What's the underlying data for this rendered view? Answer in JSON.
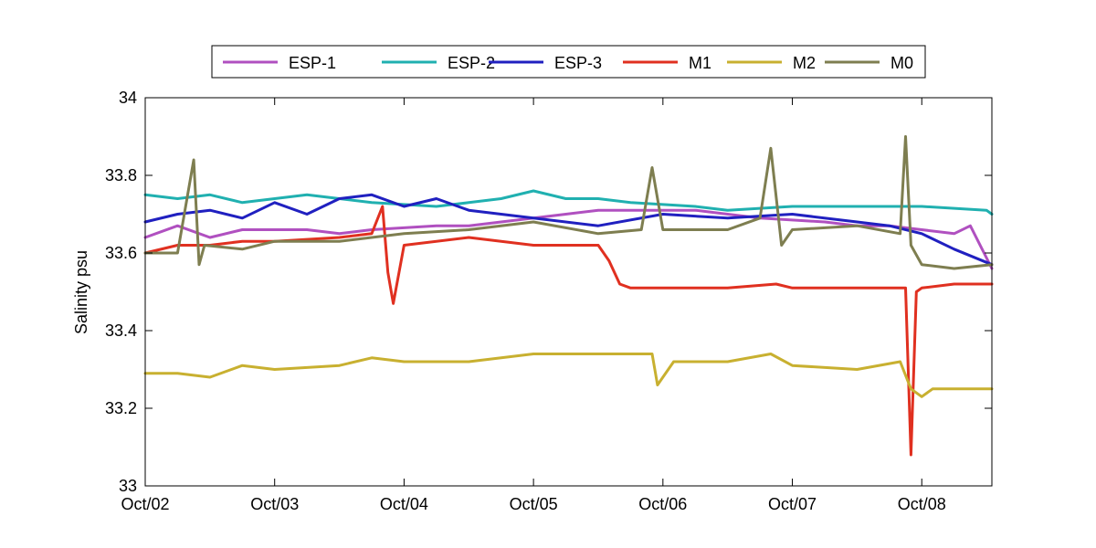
{
  "chart_data": {
    "type": "line",
    "title": "",
    "xlabel": "",
    "ylabel": "Salinity psu",
    "ylim": [
      33,
      34
    ],
    "xlim": [
      "2009-10-02",
      "2009-10-08 13:00"
    ],
    "yticks": [
      33,
      33.2,
      33.4,
      33.6,
      33.8,
      34
    ],
    "ytick_labels": [
      "33",
      "33.2",
      "33.4",
      "33.6",
      "33.8",
      "34"
    ],
    "xtick_values": [
      "2009-10-02",
      "2009-10-03",
      "2009-10-04",
      "2009-10-05",
      "2009-10-06",
      "2009-10-07",
      "2009-10-08"
    ],
    "xtick_labels": [
      "Oct/02",
      "Oct/03",
      "Oct/04",
      "Oct/05",
      "Oct/06",
      "Oct/07",
      "Oct/08"
    ],
    "grid": false,
    "legend": {
      "placement": "top-outside",
      "orientation": "horizontal"
    },
    "series": [
      {
        "name": "ESP-1",
        "color": "#b050c0",
        "x": [
          "2009-10-02 00:00",
          "2009-10-02 06:00",
          "2009-10-02 12:00",
          "2009-10-02 18:00",
          "2009-10-03 06:00",
          "2009-10-03 12:00",
          "2009-10-03 18:00",
          "2009-10-04 06:00",
          "2009-10-04 12:00",
          "2009-10-04 18:00",
          "2009-10-05 06:00",
          "2009-10-05 12:00",
          "2009-10-05 18:00",
          "2009-10-06 06:00",
          "2009-10-06 12:00",
          "2009-10-06 18:00",
          "2009-10-07 06:00",
          "2009-10-07 12:00",
          "2009-10-07 18:00",
          "2009-10-08 00:00",
          "2009-10-08 06:00",
          "2009-10-08 09:00",
          "2009-10-08 13:00"
        ],
        "y": [
          33.64,
          33.67,
          33.64,
          33.66,
          33.66,
          33.65,
          33.66,
          33.67,
          33.67,
          33.68,
          33.7,
          33.71,
          33.71,
          33.71,
          33.7,
          33.69,
          33.68,
          33.67,
          33.67,
          33.66,
          33.65,
          33.67,
          33.56
        ]
      },
      {
        "name": "ESP-2",
        "color": "#20b0b0",
        "x": [
          "2009-10-02 00:00",
          "2009-10-02 06:00",
          "2009-10-02 12:00",
          "2009-10-02 18:00",
          "2009-10-03 00:00",
          "2009-10-03 06:00",
          "2009-10-03 12:00",
          "2009-10-03 18:00",
          "2009-10-04 06:00",
          "2009-10-04 12:00",
          "2009-10-04 18:00",
          "2009-10-05 00:00",
          "2009-10-05 06:00",
          "2009-10-05 12:00",
          "2009-10-05 18:00",
          "2009-10-06 06:00",
          "2009-10-06 12:00",
          "2009-10-07 00:00",
          "2009-10-07 12:00",
          "2009-10-08 00:00",
          "2009-10-08 12:00",
          "2009-10-08 13:00"
        ],
        "y": [
          33.75,
          33.74,
          33.75,
          33.73,
          33.74,
          33.75,
          33.74,
          33.73,
          33.72,
          33.73,
          33.74,
          33.76,
          33.74,
          33.74,
          33.73,
          33.72,
          33.71,
          33.72,
          33.72,
          33.72,
          33.71,
          33.7
        ]
      },
      {
        "name": "ESP-3",
        "color": "#2020c0",
        "x": [
          "2009-10-02 00:00",
          "2009-10-02 06:00",
          "2009-10-02 12:00",
          "2009-10-02 18:00",
          "2009-10-03 00:00",
          "2009-10-03 06:00",
          "2009-10-03 12:00",
          "2009-10-03 18:00",
          "2009-10-04 00:00",
          "2009-10-04 06:00",
          "2009-10-04 12:00",
          "2009-10-04 18:00",
          "2009-10-05 00:00",
          "2009-10-05 12:00",
          "2009-10-06 00:00",
          "2009-10-06 12:00",
          "2009-10-07 00:00",
          "2009-10-07 12:00",
          "2009-10-07 18:00",
          "2009-10-08 00:00",
          "2009-10-08 06:00",
          "2009-10-08 13:00"
        ],
        "y": [
          33.68,
          33.7,
          33.71,
          33.69,
          33.73,
          33.7,
          33.74,
          33.75,
          33.72,
          33.74,
          33.71,
          33.7,
          33.69,
          33.67,
          33.7,
          33.69,
          33.7,
          33.68,
          33.67,
          33.65,
          33.61,
          33.57
        ]
      },
      {
        "name": "M1",
        "color": "#e03020",
        "x": [
          "2009-10-02 00:00",
          "2009-10-02 06:00",
          "2009-10-02 12:00",
          "2009-10-02 18:00",
          "2009-10-03 00:00",
          "2009-10-03 12:00",
          "2009-10-03 18:00",
          "2009-10-03 20:00",
          "2009-10-03 21:00",
          "2009-10-03 22:00",
          "2009-10-04 00:00",
          "2009-10-04 12:00",
          "2009-10-05 00:00",
          "2009-10-05 12:00",
          "2009-10-05 14:00",
          "2009-10-05 16:00",
          "2009-10-05 18:00",
          "2009-10-06 00:00",
          "2009-10-06 12:00",
          "2009-10-06 21:00",
          "2009-10-07 00:00",
          "2009-10-07 12:00",
          "2009-10-07 21:00",
          "2009-10-07 22:00",
          "2009-10-07 23:00",
          "2009-10-08 00:00",
          "2009-10-08 06:00",
          "2009-10-08 13:00"
        ],
        "y": [
          33.6,
          33.62,
          33.62,
          33.63,
          33.63,
          33.64,
          33.65,
          33.72,
          33.55,
          33.47,
          33.62,
          33.64,
          33.62,
          33.62,
          33.58,
          33.52,
          33.51,
          33.51,
          33.51,
          33.52,
          33.51,
          33.51,
          33.51,
          33.08,
          33.5,
          33.51,
          33.52,
          33.52
        ]
      },
      {
        "name": "M2",
        "color": "#c8b030",
        "x": [
          "2009-10-02 00:00",
          "2009-10-02 06:00",
          "2009-10-02 12:00",
          "2009-10-02 18:00",
          "2009-10-03 00:00",
          "2009-10-03 12:00",
          "2009-10-03 18:00",
          "2009-10-04 00:00",
          "2009-10-04 12:00",
          "2009-10-05 00:00",
          "2009-10-05 12:00",
          "2009-10-05 22:00",
          "2009-10-05 23:00",
          "2009-10-06 02:00",
          "2009-10-06 12:00",
          "2009-10-06 20:00",
          "2009-10-07 00:00",
          "2009-10-07 12:00",
          "2009-10-07 20:00",
          "2009-10-07 22:00",
          "2009-10-08 00:00",
          "2009-10-08 02:00",
          "2009-10-08 13:00"
        ],
        "y": [
          33.29,
          33.29,
          33.28,
          33.31,
          33.3,
          33.31,
          33.33,
          33.32,
          33.32,
          33.34,
          33.34,
          33.34,
          33.26,
          33.32,
          33.32,
          33.34,
          33.31,
          33.3,
          33.32,
          33.25,
          33.23,
          33.25,
          33.25
        ]
      },
      {
        "name": "M0",
        "color": "#7e7e50",
        "x": [
          "2009-10-02 00:00",
          "2009-10-02 06:00",
          "2009-10-02 09:00",
          "2009-10-02 10:00",
          "2009-10-02 11:00",
          "2009-10-02 18:00",
          "2009-10-03 00:00",
          "2009-10-03 12:00",
          "2009-10-04 00:00",
          "2009-10-04 12:00",
          "2009-10-05 00:00",
          "2009-10-05 12:00",
          "2009-10-05 20:00",
          "2009-10-05 22:00",
          "2009-10-06 00:00",
          "2009-10-06 12:00",
          "2009-10-06 18:00",
          "2009-10-06 20:00",
          "2009-10-06 22:00",
          "2009-10-07 00:00",
          "2009-10-07 12:00",
          "2009-10-07 20:00",
          "2009-10-07 21:00",
          "2009-10-07 22:00",
          "2009-10-08 00:00",
          "2009-10-08 06:00",
          "2009-10-08 13:00"
        ],
        "y": [
          33.6,
          33.6,
          33.84,
          33.57,
          33.62,
          33.61,
          33.63,
          33.63,
          33.65,
          33.66,
          33.68,
          33.65,
          33.66,
          33.82,
          33.66,
          33.66,
          33.69,
          33.87,
          33.62,
          33.66,
          33.67,
          33.65,
          33.9,
          33.62,
          33.57,
          33.56,
          33.57
        ]
      }
    ]
  }
}
